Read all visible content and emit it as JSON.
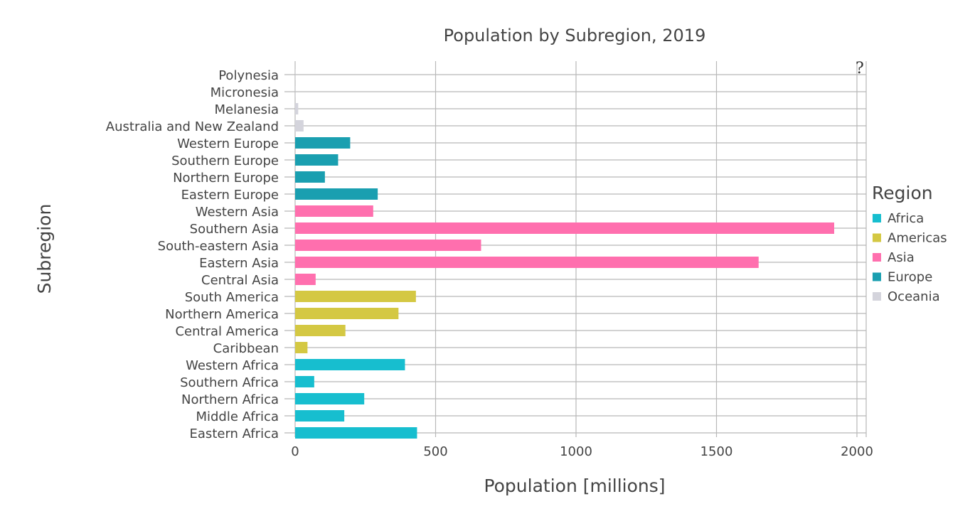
{
  "help_icon": "?",
  "chart_data": {
    "type": "bar",
    "orientation": "horizontal",
    "title": "Population by Subregion, 2019",
    "xlabel": "Population [millions]",
    "ylabel": "Subregion",
    "xlim": [
      0,
      2030
    ],
    "xticks": [
      0,
      500,
      1000,
      1500,
      2000
    ],
    "grid": true,
    "legend": {
      "title": "Region",
      "placement": "right",
      "entries": [
        {
          "name": "Africa",
          "color": "#17becf"
        },
        {
          "name": "Americas",
          "color": "#d4c843"
        },
        {
          "name": "Asia",
          "color": "#ff6fae"
        },
        {
          "name": "Europe",
          "color": "#1a9fb0"
        },
        {
          "name": "Oceania",
          "color": "#d4d4dc"
        }
      ]
    },
    "categories": [
      "Polynesia",
      "Micronesia",
      "Melanesia",
      "Australia and New Zealand",
      "Western Europe",
      "Southern Europe",
      "Northern Europe",
      "Eastern Europe",
      "Western Asia",
      "Southern Asia",
      "South-eastern Asia",
      "Eastern Asia",
      "Central Asia",
      "South America",
      "Northern America",
      "Central America",
      "Caribbean",
      "Western Africa",
      "Southern Africa",
      "Northern Africa",
      "Middle Africa",
      "Eastern Africa"
    ],
    "bars": [
      {
        "category": "Polynesia",
        "value": 0.7,
        "region": "Oceania"
      },
      {
        "category": "Micronesia",
        "value": 0.5,
        "region": "Oceania"
      },
      {
        "category": "Melanesia",
        "value": 11,
        "region": "Oceania"
      },
      {
        "category": "Australia and New Zealand",
        "value": 30,
        "region": "Oceania"
      },
      {
        "category": "Western Europe",
        "value": 196,
        "region": "Europe"
      },
      {
        "category": "Southern Europe",
        "value": 153,
        "region": "Europe"
      },
      {
        "category": "Northern Europe",
        "value": 106,
        "region": "Europe"
      },
      {
        "category": "Eastern Europe",
        "value": 294,
        "region": "Europe"
      },
      {
        "category": "Western Asia",
        "value": 278,
        "region": "Asia"
      },
      {
        "category": "Southern Asia",
        "value": 1919,
        "region": "Asia"
      },
      {
        "category": "South-eastern Asia",
        "value": 662,
        "region": "Asia"
      },
      {
        "category": "Eastern Asia",
        "value": 1650,
        "region": "Asia"
      },
      {
        "category": "Central Asia",
        "value": 73,
        "region": "Asia"
      },
      {
        "category": "South America",
        "value": 430,
        "region": "Americas"
      },
      {
        "category": "Northern America",
        "value": 368,
        "region": "Americas"
      },
      {
        "category": "Central America",
        "value": 179,
        "region": "Americas"
      },
      {
        "category": "Caribbean",
        "value": 44,
        "region": "Americas"
      },
      {
        "category": "Western Africa",
        "value": 391,
        "region": "Africa"
      },
      {
        "category": "Southern Africa",
        "value": 68,
        "region": "Africa"
      },
      {
        "category": "Northern Africa",
        "value": 246,
        "region": "Africa"
      },
      {
        "category": "Middle Africa",
        "value": 175,
        "region": "Africa"
      },
      {
        "category": "Eastern Africa",
        "value": 434,
        "region": "Africa"
      }
    ]
  }
}
